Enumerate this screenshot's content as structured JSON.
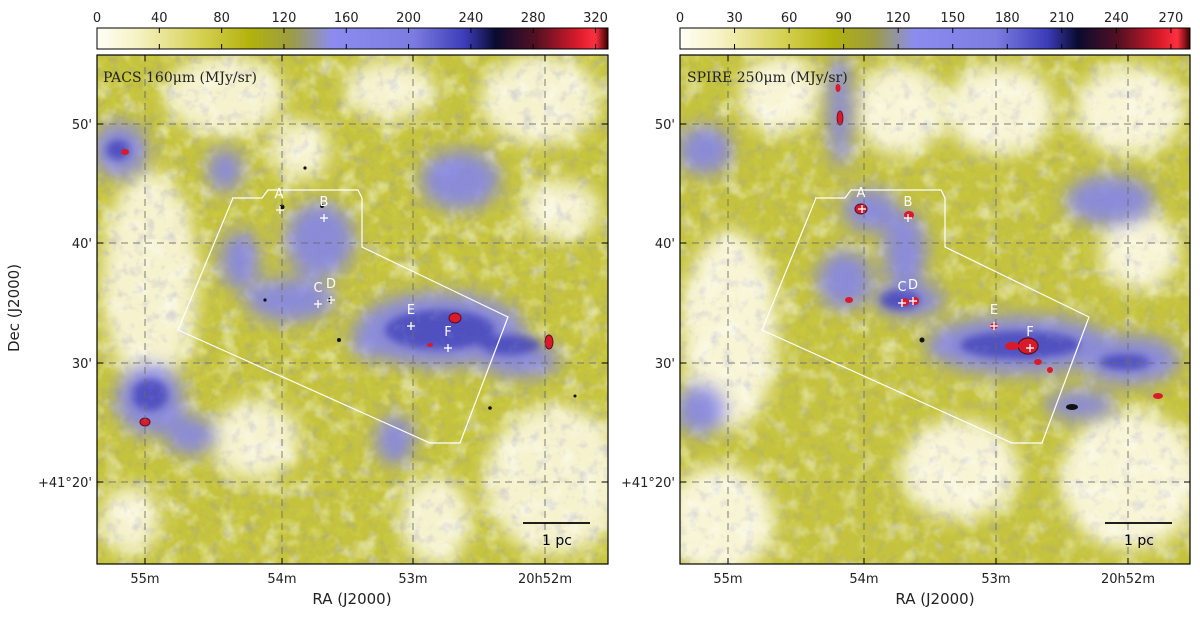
{
  "figure": {
    "axis_title_dec": "Dec (J2000)",
    "axis_title_ra": "RA (J2000)",
    "dec_tick_labels": [
      "50'",
      "40'",
      "30'",
      "+41°20'"
    ],
    "ra_tick_labels": [
      "55m",
      "54m",
      "53m",
      "20h52m"
    ],
    "scale_bar_label": "1 pc"
  },
  "colormap": {
    "stops": [
      "#fffef6",
      "#f6f2c4",
      "#d6d254",
      "#b2b20c",
      "#9c9c44",
      "#8c8cf0",
      "#7b7be0",
      "#3c3cb8",
      "#0a0a30",
      "#541022",
      "#d81a2a",
      "#ff3040",
      "#3a0000"
    ]
  },
  "panels": [
    {
      "title": "PACS 160μm (MJy/sr)",
      "colorbar_ticks": [
        "0",
        "40",
        "80",
        "120",
        "160",
        "200",
        "240",
        "280",
        "320"
      ],
      "sources": [
        {
          "label": "A"
        },
        {
          "label": "B"
        },
        {
          "label": "C"
        },
        {
          "label": "D"
        },
        {
          "label": "E"
        },
        {
          "label": "F"
        }
      ]
    },
    {
      "title": "SPIRE 250μm (MJy/sr)",
      "colorbar_ticks": [
        "0",
        "30",
        "60",
        "90",
        "120",
        "150",
        "180",
        "210",
        "240",
        "270"
      ],
      "sources": [
        {
          "label": "A"
        },
        {
          "label": "B"
        },
        {
          "label": "C"
        },
        {
          "label": "D"
        },
        {
          "label": "E"
        },
        {
          "label": "F"
        }
      ]
    }
  ]
}
